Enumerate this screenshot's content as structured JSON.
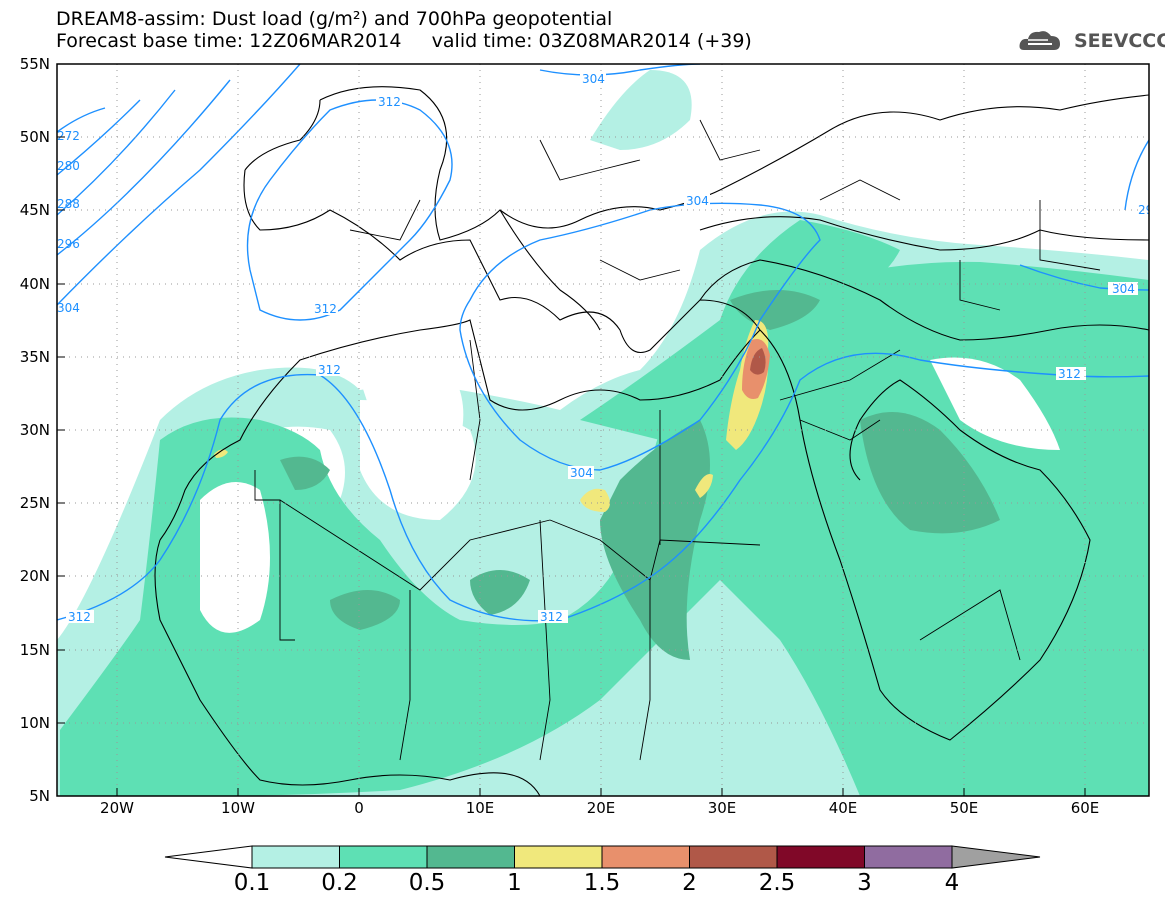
{
  "title": {
    "line1": "DREAM8-assim: Dust load (g/m²) and 700hPa geopotential",
    "line2": "Forecast base time: 12Z06MAR2014     valid time: 03Z08MAR2014 (+39)"
  },
  "logo": {
    "text": "SEEVCCC",
    "icon": "cloud-icon"
  },
  "axes": {
    "lat_labels": [
      "55N",
      "50N",
      "45N",
      "40N",
      "35N",
      "30N",
      "25N",
      "20N",
      "15N",
      "10N",
      "5N"
    ],
    "lon_labels": [
      "20W",
      "10W",
      "0",
      "10E",
      "20E",
      "30E",
      "40E",
      "50E",
      "60E"
    ]
  },
  "contour_labels": [
    "304",
    "312",
    "304",
    "304",
    "312",
    "304",
    "312",
    "312",
    "312",
    "312",
    "296",
    "288",
    "280",
    "272",
    "304",
    "29"
  ],
  "colorbar": {
    "labels": [
      "0.1",
      "0.2",
      "0.5",
      "1",
      "1.5",
      "2",
      "2.5",
      "3",
      "4"
    ],
    "colors": [
      "#ffffff",
      "#b4f0e4",
      "#5ee0b4",
      "#53b890",
      "#f0e87c",
      "#e8906c",
      "#b05848",
      "#800828",
      "#906ca0",
      "#a0a0a0"
    ]
  }
}
